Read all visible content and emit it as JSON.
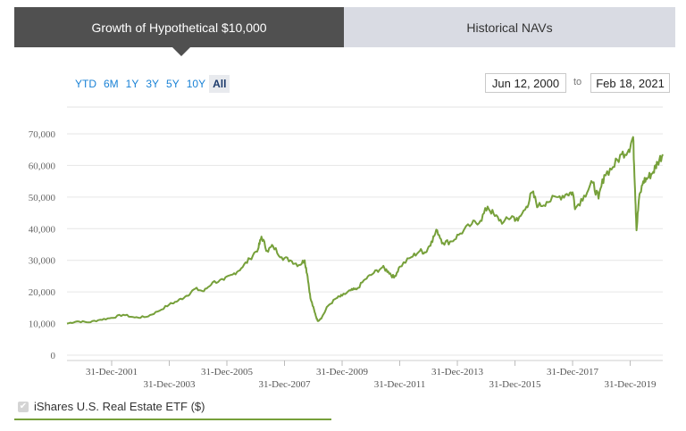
{
  "tabs": [
    {
      "label": "Growth of Hypothetical $10,000",
      "active": true
    },
    {
      "label": "Historical NAVs",
      "active": false
    }
  ],
  "ranges": [
    "YTD",
    "6M",
    "1Y",
    "3Y",
    "5Y",
    "10Y",
    "All"
  ],
  "active_range": "All",
  "date_range": {
    "from": "Jun 12, 2000",
    "to_label": "to",
    "to": "Feb 18, 2021"
  },
  "legend": {
    "label": "iShares U.S. Real Estate ETF ($)",
    "checked": true
  },
  "colors": {
    "series": "#76a03a",
    "active_tab": "#505050",
    "inactive_tab": "#d9dbe3",
    "link": "#1a82d6"
  },
  "chart_data": {
    "type": "line",
    "y_ticks": [
      "0",
      "10,000",
      "20,000",
      "30,000",
      "40,000",
      "50,000",
      "60,000",
      "70,000"
    ],
    "ylim": [
      0,
      70000
    ],
    "x_ticks_row1": [
      "31-Dec-2001",
      "31-Dec-2005",
      "31-Dec-2009",
      "31-Dec-2013",
      "31-Dec-2017"
    ],
    "x_ticks_row2": [
      "31-Dec-2003",
      "31-Dec-2007",
      "31-Dec-2011",
      "31-Dec-2015",
      "31-Dec-2019"
    ],
    "x_tick_years": [
      2002,
      2004,
      2006,
      2008,
      2010,
      2012,
      2014,
      2016,
      2018,
      2020
    ],
    "xlim": [
      2000.45,
      2021.13
    ],
    "series": [
      {
        "points": [
          [
            2000.45,
            10000
          ],
          [
            2000.8,
            10700
          ],
          [
            2001.2,
            10400
          ],
          [
            2001.6,
            11200
          ],
          [
            2002.0,
            11800
          ],
          [
            2002.4,
            12800
          ],
          [
            2002.8,
            11900
          ],
          [
            2003.2,
            12100
          ],
          [
            2003.6,
            13800
          ],
          [
            2004.0,
            16000
          ],
          [
            2004.3,
            17200
          ],
          [
            2004.6,
            18800
          ],
          [
            2004.9,
            21000
          ],
          [
            2005.2,
            20200
          ],
          [
            2005.5,
            23000
          ],
          [
            2005.9,
            23800
          ],
          [
            2006.2,
            25500
          ],
          [
            2006.5,
            27500
          ],
          [
            2006.8,
            30500
          ],
          [
            2007.1,
            34000
          ],
          [
            2007.2,
            37500
          ],
          [
            2007.4,
            33000
          ],
          [
            2007.6,
            34500
          ],
          [
            2007.9,
            31000
          ],
          [
            2008.2,
            30000
          ],
          [
            2008.5,
            28500
          ],
          [
            2008.7,
            30000
          ],
          [
            2008.8,
            25000
          ],
          [
            2008.9,
            18000
          ],
          [
            2009.05,
            13500
          ],
          [
            2009.15,
            10800
          ],
          [
            2009.3,
            12000
          ],
          [
            2009.5,
            15500
          ],
          [
            2009.8,
            18000
          ],
          [
            2010.0,
            18800
          ],
          [
            2010.3,
            20500
          ],
          [
            2010.5,
            20800
          ],
          [
            2010.8,
            24000
          ],
          [
            2011.1,
            26000
          ],
          [
            2011.4,
            27800
          ],
          [
            2011.6,
            26500
          ],
          [
            2011.8,
            24500
          ],
          [
            2012.0,
            28000
          ],
          [
            2012.4,
            31000
          ],
          [
            2012.7,
            33000
          ],
          [
            2012.9,
            32500
          ],
          [
            2013.1,
            36000
          ],
          [
            2013.3,
            39500
          ],
          [
            2013.5,
            35500
          ],
          [
            2013.8,
            36000
          ],
          [
            2014.1,
            38500
          ],
          [
            2014.5,
            41500
          ],
          [
            2014.8,
            42500
          ],
          [
            2015.05,
            47000
          ],
          [
            2015.3,
            44000
          ],
          [
            2015.6,
            42000
          ],
          [
            2015.9,
            44000
          ],
          [
            2016.1,
            42500
          ],
          [
            2016.4,
            47000
          ],
          [
            2016.6,
            51500
          ],
          [
            2016.8,
            47000
          ],
          [
            2017.1,
            48500
          ],
          [
            2017.5,
            50000
          ],
          [
            2017.8,
            51000
          ],
          [
            2018.0,
            51500
          ],
          [
            2018.1,
            46500
          ],
          [
            2018.4,
            50500
          ],
          [
            2018.7,
            54500
          ],
          [
            2018.9,
            49500
          ],
          [
            2019.1,
            57000
          ],
          [
            2019.4,
            59500
          ],
          [
            2019.7,
            63500
          ],
          [
            2019.95,
            65000
          ],
          [
            2020.1,
            69000
          ],
          [
            2020.17,
            52000
          ],
          [
            2020.22,
            39500
          ],
          [
            2020.3,
            49000
          ],
          [
            2020.45,
            55000
          ],
          [
            2020.6,
            56000
          ],
          [
            2020.8,
            58000
          ],
          [
            2020.95,
            61000
          ],
          [
            2021.13,
            63500
          ]
        ]
      }
    ],
    "grid": true,
    "legend_position": "bottom-left"
  }
}
